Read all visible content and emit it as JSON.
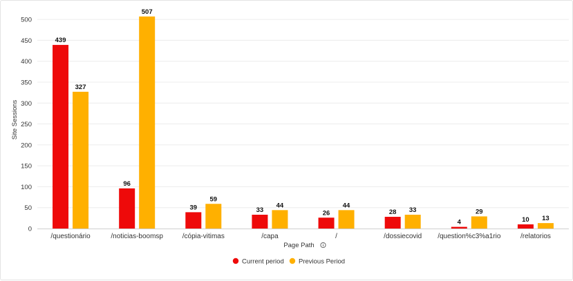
{
  "chart_data": {
    "type": "bar",
    "title": "",
    "xlabel": "Page Path",
    "xlabel_icon": "info-icon",
    "ylabel": "Site Sessions",
    "ylim": [
      0,
      520
    ],
    "yticks": [
      0,
      50,
      100,
      150,
      200,
      250,
      300,
      350,
      400,
      450,
      500
    ],
    "grid": true,
    "legend_position": "bottom-center",
    "categories": [
      "/questionário",
      "/noticias-boomsp",
      "/cópia-vitimas",
      "/capa",
      "/",
      "/dossiecovid",
      "/question%c3%a1rio",
      "/relatorios"
    ],
    "category_colors": [
      "#333333",
      "#1a0dab",
      "#333333",
      "#333333",
      "#333333",
      "#1a0dab",
      "#333333",
      "#1a0dab"
    ],
    "series": [
      {
        "name": "Current period",
        "color": "#ee0a0a",
        "values": [
          439,
          96,
          39,
          33,
          26,
          28,
          4,
          10
        ]
      },
      {
        "name": "Previous Period",
        "color": "#ffb000",
        "values": [
          327,
          507,
          59,
          44,
          44,
          33,
          29,
          13
        ]
      }
    ]
  }
}
